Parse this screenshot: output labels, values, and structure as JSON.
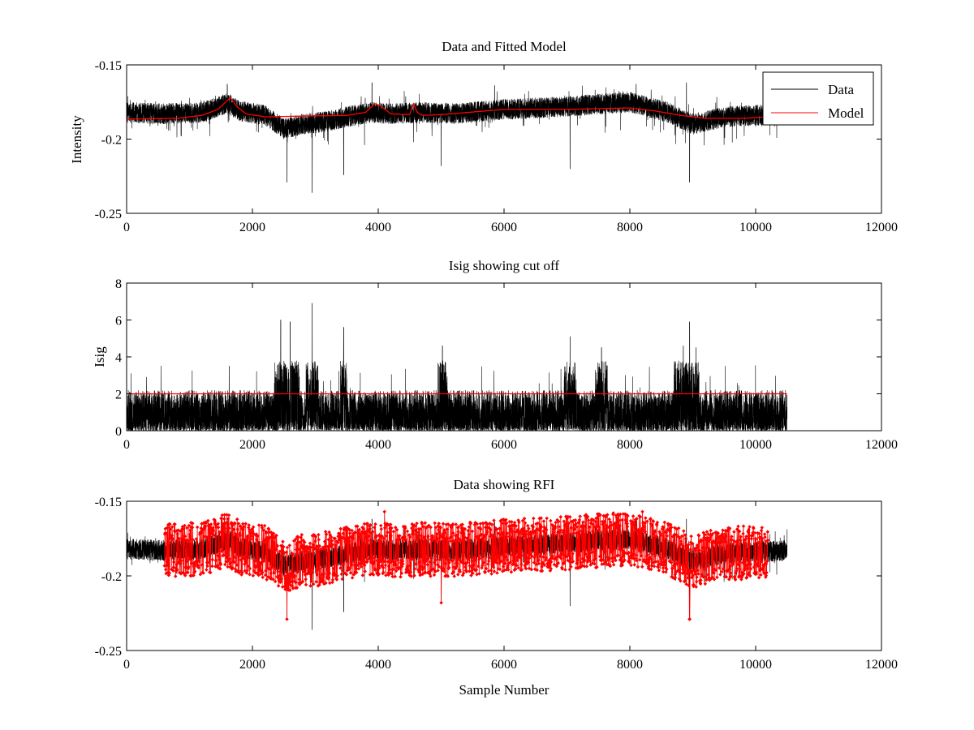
{
  "chart_data": [
    {
      "type": "line",
      "title": "Data and Fitted Model",
      "xlabel": "",
      "ylabel": "Intensity",
      "xlim": [
        0,
        12000
      ],
      "ylim": [
        -0.25,
        -0.15
      ],
      "y_reversed": true,
      "xticks": [
        0,
        2000,
        4000,
        6000,
        8000,
        10000,
        12000
      ],
      "xtick_labels": [
        "0",
        "2000",
        "4000",
        "6000",
        "8000",
        "10000",
        "12000"
      ],
      "yticks": [
        -0.15,
        -0.2,
        -0.25
      ],
      "ytick_labels": [
        "-0.15",
        "-0.2",
        "-0.25"
      ],
      "legend": {
        "position": "top-right",
        "entries": [
          "Data",
          "Model"
        ]
      },
      "colors": {
        "Data": "#000000",
        "Model": "#ff0000"
      },
      "series": [
        {
          "name": "Data",
          "style": "noisy",
          "x_range": [
            0,
            10500
          ],
          "num_points": 10500,
          "baseline": [
            [
              0,
              -0.182
            ],
            [
              600,
              -0.183
            ],
            [
              1200,
              -0.182
            ],
            [
              1600,
              -0.176
            ],
            [
              1800,
              -0.181
            ],
            [
              2200,
              -0.184
            ],
            [
              2500,
              -0.193
            ],
            [
              2800,
              -0.19
            ],
            [
              3200,
              -0.188
            ],
            [
              3500,
              -0.185
            ],
            [
              3900,
              -0.182
            ],
            [
              4200,
              -0.183
            ],
            [
              4700,
              -0.182
            ],
            [
              5200,
              -0.183
            ],
            [
              6000,
              -0.18
            ],
            [
              7000,
              -0.178
            ],
            [
              8000,
              -0.175
            ],
            [
              8600,
              -0.182
            ],
            [
              9000,
              -0.19
            ],
            [
              9500,
              -0.185
            ],
            [
              10000,
              -0.184
            ],
            [
              10500,
              -0.183
            ]
          ],
          "noise_amplitude": 0.007,
          "notable_dips": [
            [
              2550,
              -0.229
            ],
            [
              2950,
              -0.236
            ],
            [
              3450,
              -0.224
            ],
            [
              5000,
              -0.218
            ],
            [
              7050,
              -0.22
            ],
            [
              8950,
              -0.229
            ]
          ],
          "notable_peaks": [
            [
              1600,
              -0.163
            ],
            [
              3900,
              -0.162
            ],
            [
              5850,
              -0.164
            ],
            [
              8100,
              -0.163
            ],
            [
              8900,
              -0.162
            ]
          ]
        },
        {
          "name": "Model",
          "x": [
            0,
            800,
            1200,
            1450,
            1600,
            1650,
            1750,
            1900,
            2200,
            2800,
            3500,
            3800,
            3950,
            4050,
            4200,
            4500,
            4560,
            4620,
            4700,
            5000,
            6000,
            7000,
            8000,
            8400,
            8800,
            9200,
            9800,
            10200
          ],
          "values": [
            -0.1865,
            -0.186,
            -0.184,
            -0.18,
            -0.174,
            -0.172,
            -0.178,
            -0.183,
            -0.185,
            -0.1845,
            -0.184,
            -0.182,
            -0.176,
            -0.178,
            -0.183,
            -0.1835,
            -0.176,
            -0.182,
            -0.184,
            -0.1835,
            -0.18,
            -0.18,
            -0.179,
            -0.181,
            -0.184,
            -0.186,
            -0.186,
            -0.185
          ]
        }
      ]
    },
    {
      "type": "line",
      "title": "Isig showing cut off",
      "xlabel": "",
      "ylabel": "Isig",
      "xlim": [
        0,
        12000
      ],
      "ylim": [
        0,
        8
      ],
      "xticks": [
        0,
        2000,
        4000,
        6000,
        8000,
        10000,
        12000
      ],
      "xtick_labels": [
        "0",
        "2000",
        "4000",
        "6000",
        "8000",
        "10000",
        "12000"
      ],
      "yticks": [
        0,
        2,
        4,
        6,
        8
      ],
      "ytick_labels": [
        "0",
        "2",
        "4",
        "6",
        "8"
      ],
      "colors": {
        "Isig": "#000000",
        "Cutoff": "#ff0000"
      },
      "series": [
        {
          "name": "Isig",
          "style": "spiky",
          "x_range": [
            0,
            10500
          ],
          "num_points": 10500,
          "typical_max": 2.2,
          "notable_peaks": [
            [
              1630,
              3.5
            ],
            [
              2450,
              6.0
            ],
            [
              2600,
              5.9
            ],
            [
              2950,
              6.9
            ],
            [
              3450,
              5.6
            ],
            [
              5020,
              4.6
            ],
            [
              7050,
              5.1
            ],
            [
              7550,
              4.5
            ],
            [
              8850,
              4.6
            ],
            [
              8950,
              5.9
            ],
            [
              9050,
              4.5
            ]
          ]
        },
        {
          "name": "Cutoff",
          "x": [
            0,
            10500
          ],
          "values": [
            2.0,
            2.0
          ]
        }
      ]
    },
    {
      "type": "scatter",
      "title": "Data showing RFI",
      "xlabel": "Sample Number",
      "ylabel": "",
      "xlim": [
        0,
        12000
      ],
      "ylim": [
        -0.25,
        -0.15
      ],
      "y_reversed": true,
      "xticks": [
        0,
        2000,
        4000,
        6000,
        8000,
        10000,
        12000
      ],
      "xtick_labels": [
        "0",
        "2000",
        "4000",
        "6000",
        "8000",
        "10000",
        "12000"
      ],
      "yticks": [
        -0.15,
        -0.2,
        -0.25
      ],
      "ytick_labels": [
        "-0.15",
        "-0.2",
        "-0.25"
      ],
      "colors": {
        "Data": "#000000",
        "RFI": "#ff0000"
      },
      "series": [
        {
          "name": "Data",
          "style": "noisy",
          "x_range": [
            0,
            10500
          ]
        },
        {
          "name": "RFI",
          "style": "markers",
          "x_range": [
            600,
            10200
          ],
          "num_points": 1800,
          "notable_points": [
            [
              2550,
              -0.229
            ],
            [
              2950,
              -0.236
            ],
            [
              4100,
              -0.157
            ],
            [
              5000,
              -0.218
            ],
            [
              8200,
              -0.157
            ],
            [
              8950,
              -0.229
            ]
          ]
        }
      ]
    }
  ]
}
